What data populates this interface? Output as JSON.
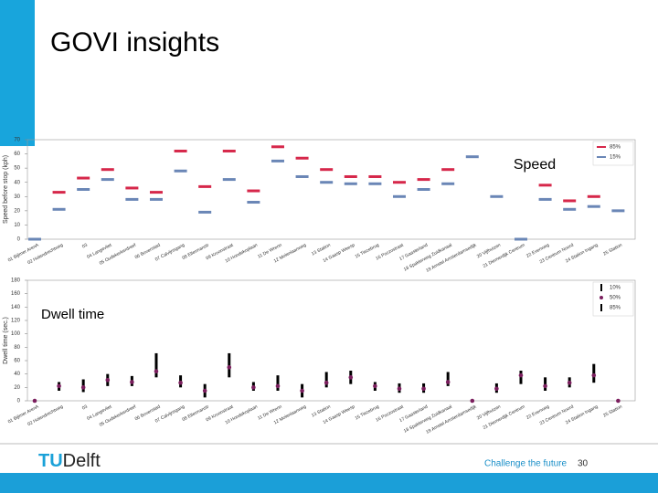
{
  "title": "GOVI insights",
  "footer": {
    "logo_tu": "TU",
    "logo_delft": "Delft",
    "slogan": "Challenge the future",
    "page": "30"
  },
  "chart_data": [
    {
      "type": "dash",
      "annotation": "Speed",
      "y_label": "Speed before stop (kph)",
      "ylim": [
        0,
        70
      ],
      "yticks": [
        0,
        10,
        20,
        30,
        40,
        50,
        60,
        70
      ],
      "legend": "top-right",
      "categories": [
        "01 Bijlmer ArenA",
        "02 Holendrechtweg",
        "03",
        "04 Langevliet",
        "05 Oudekerkerdreef",
        "06 Bovenstad",
        "07 Calvijnsgang",
        "08 Ellermanstr",
        "09 Kroonstraat",
        "10 Hondekoplaan",
        "11 De Wrenn",
        "12 Molenlaanweg",
        "13 Station",
        "14 Gaasp Weesp",
        "15 Tiezebrug",
        "16 Pozzostraat",
        "17 Gaasterland",
        "18 Spaklerweg Zuidkanaal",
        "19 Amstel Amsterdamsedijk",
        "20 Vijfhuizen",
        "21 Diemerdijk Centrum",
        "22 Evenweg",
        "23 Centrum Noord",
        "24 Station Ingang",
        "25 Station"
      ],
      "series": [
        {
          "name": "85%",
          "color": "#d6274a",
          "values": [
            null,
            33,
            43,
            49,
            36,
            33,
            62,
            37,
            62,
            34,
            65,
            57,
            49,
            44,
            44,
            40,
            42,
            49,
            null,
            null,
            null,
            38,
            27,
            30,
            null
          ]
        },
        {
          "name": "15%",
          "color": "#6a86b6",
          "values": [
            0,
            21,
            35,
            42,
            28,
            28,
            48,
            19,
            42,
            26,
            55,
            44,
            40,
            39,
            39,
            30,
            35,
            39,
            58,
            30,
            0,
            28,
            21,
            23,
            20
          ]
        }
      ]
    },
    {
      "type": "range",
      "annotation": "Dwell time",
      "y_label": "Dwell time (sec.)",
      "ylim": [
        0,
        180
      ],
      "yticks": [
        0,
        20,
        40,
        60,
        80,
        100,
        120,
        140,
        160,
        180
      ],
      "legend": "top-right",
      "categories": [
        "01 Bijlmer ArenA",
        "02 Holendrechtweg",
        "03",
        "04 Langevliet",
        "05 Oudekerkerdreef",
        "06 Bovenstad",
        "07 Calvijnsgang",
        "08 Ellermanstr",
        "09 Kroonstraat",
        "10 Hondekoplaan",
        "11 De Wrenn",
        "12 Molenlaanweg",
        "13 Station",
        "14 Gaasp Weesp",
        "15 Tiezebrug",
        "16 Pozzostraat",
        "17 Gaasterland",
        "18 Spaklerweg Zuidkanaal",
        "19 Amstel Amsterdamsedijk",
        "20 Vijfhuizen",
        "21 Diemerdijk Centrum",
        "22 Evenweg",
        "23 Centrum Noord",
        "24 Station Ingang",
        "25 Station"
      ],
      "series": [
        {
          "name": "10%",
          "color": "#000000",
          "values": [
            null,
            15,
            13,
            22,
            22,
            35,
            20,
            5,
            35,
            15,
            15,
            5,
            20,
            25,
            15,
            12,
            12,
            22,
            null,
            12,
            25,
            15,
            20,
            27,
            null
          ]
        },
        {
          "name": "50%",
          "color": "#7b1f5e",
          "values": [
            0,
            22,
            20,
            31,
            28,
            44,
            27,
            15,
            50,
            20,
            22,
            15,
            27,
            35,
            22,
            18,
            18,
            28,
            0,
            18,
            38,
            22,
            27,
            38,
            0
          ]
        },
        {
          "name": "85%",
          "color": "#000000",
          "values": [
            null,
            28,
            32,
            40,
            37,
            71,
            38,
            25,
            71,
            28,
            38,
            25,
            43,
            45,
            28,
            26,
            26,
            43,
            null,
            26,
            45,
            35,
            35,
            55,
            null
          ]
        }
      ]
    }
  ]
}
